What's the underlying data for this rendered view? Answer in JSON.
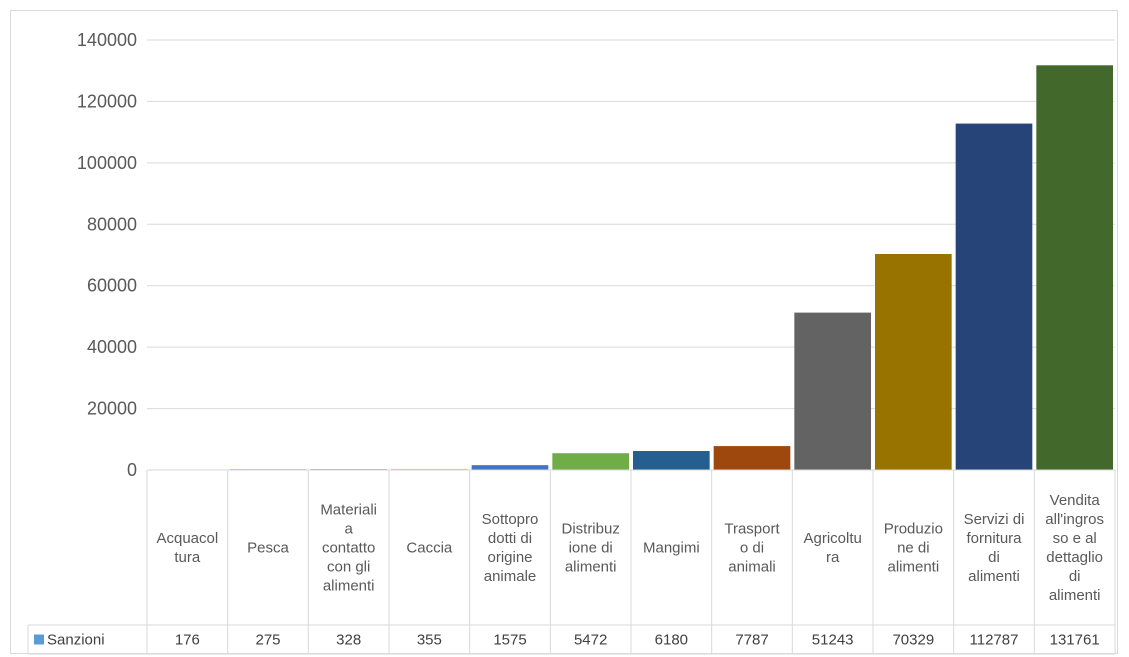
{
  "chart_data": {
    "type": "bar",
    "categories": [
      [
        "Acquacol",
        "tura"
      ],
      [
        "Pesca"
      ],
      [
        "Materiali",
        "a",
        "contatto",
        "con gli",
        "alimenti"
      ],
      [
        "Caccia"
      ],
      [
        "Sottopro",
        "dotti di",
        "origine",
        "animale"
      ],
      [
        "Distribuz",
        "ione di",
        "alimenti"
      ],
      [
        "Mangimi"
      ],
      [
        "Trasport",
        "o di",
        "animali"
      ],
      [
        "Agricoltu",
        "ra"
      ],
      [
        "Produzio",
        "ne di",
        "alimenti"
      ],
      [
        "Servizi di",
        "fornitura",
        "di",
        "alimenti"
      ],
      [
        "Vendita",
        "all'ingros",
        "so e al",
        "dettaglio",
        "di",
        "alimenti"
      ]
    ],
    "series": [
      {
        "name": "Sanzioni",
        "color": "#5b9bd5",
        "values": [
          176,
          275,
          328,
          355,
          1575,
          5472,
          6180,
          7787,
          51243,
          70329,
          112787,
          131761
        ],
        "value_labels": [
          "176",
          "275",
          "328",
          "355",
          "1575",
          "5472",
          "6180",
          "7787",
          "51243",
          "70329",
          "112787",
          "131761"
        ]
      }
    ],
    "bar_colors": [
      "#5b9bd5",
      "#ed7d31",
      "#a5a5a5",
      "#ffc000",
      "#4472c4",
      "#70ad47",
      "#255e91",
      "#9e480e",
      "#636363",
      "#997300",
      "#264478",
      "#43682b"
    ],
    "ylim": [
      0,
      140000
    ],
    "yticks": [
      0,
      20000,
      40000,
      60000,
      80000,
      100000,
      120000,
      140000
    ],
    "ytick_labels": [
      "0",
      "20000",
      "40000",
      "60000",
      "80000",
      "100000",
      "120000",
      "140000"
    ],
    "grid": true,
    "legend": "data-table-left",
    "gridline_color": "#d9d9d9",
    "label_color": "#595959"
  }
}
